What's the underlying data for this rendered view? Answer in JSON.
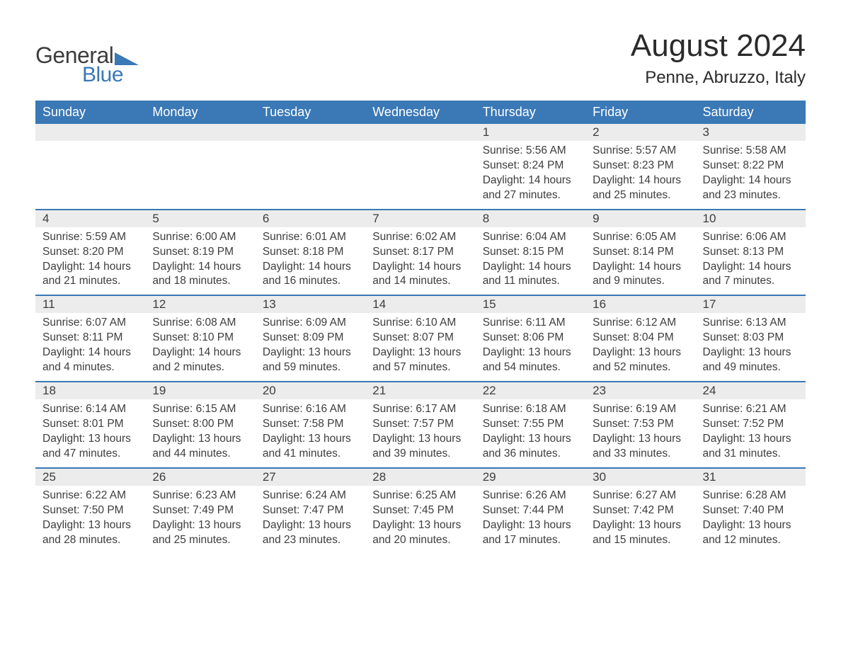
{
  "brand": {
    "general": "General",
    "blue": "Blue",
    "logo_color": "#3a78b6"
  },
  "title": "August 2024",
  "location": "Penne, Abruzzo, Italy",
  "colors": {
    "header_bg": "#3a78b6",
    "header_text": "#ffffff",
    "daynum_bg": "#ececec",
    "text": "#3d3d3d",
    "row_border": "#3a78b6",
    "page_bg": "#ffffff"
  },
  "fonts": {
    "title_size": 44,
    "location_size": 24,
    "dayhead_size": 18,
    "body_size": 15.5
  },
  "day_labels": [
    "Sunday",
    "Monday",
    "Tuesday",
    "Wednesday",
    "Thursday",
    "Friday",
    "Saturday"
  ],
  "leading_blanks": 4,
  "days": [
    {
      "n": 1,
      "sunrise": "5:56 AM",
      "sunset": "8:24 PM",
      "daylight": "14 hours and 27 minutes."
    },
    {
      "n": 2,
      "sunrise": "5:57 AM",
      "sunset": "8:23 PM",
      "daylight": "14 hours and 25 minutes."
    },
    {
      "n": 3,
      "sunrise": "5:58 AM",
      "sunset": "8:22 PM",
      "daylight": "14 hours and 23 minutes."
    },
    {
      "n": 4,
      "sunrise": "5:59 AM",
      "sunset": "8:20 PM",
      "daylight": "14 hours and 21 minutes."
    },
    {
      "n": 5,
      "sunrise": "6:00 AM",
      "sunset": "8:19 PM",
      "daylight": "14 hours and 18 minutes."
    },
    {
      "n": 6,
      "sunrise": "6:01 AM",
      "sunset": "8:18 PM",
      "daylight": "14 hours and 16 minutes."
    },
    {
      "n": 7,
      "sunrise": "6:02 AM",
      "sunset": "8:17 PM",
      "daylight": "14 hours and 14 minutes."
    },
    {
      "n": 8,
      "sunrise": "6:04 AM",
      "sunset": "8:15 PM",
      "daylight": "14 hours and 11 minutes."
    },
    {
      "n": 9,
      "sunrise": "6:05 AM",
      "sunset": "8:14 PM",
      "daylight": "14 hours and 9 minutes."
    },
    {
      "n": 10,
      "sunrise": "6:06 AM",
      "sunset": "8:13 PM",
      "daylight": "14 hours and 7 minutes."
    },
    {
      "n": 11,
      "sunrise": "6:07 AM",
      "sunset": "8:11 PM",
      "daylight": "14 hours and 4 minutes."
    },
    {
      "n": 12,
      "sunrise": "6:08 AM",
      "sunset": "8:10 PM",
      "daylight": "14 hours and 2 minutes."
    },
    {
      "n": 13,
      "sunrise": "6:09 AM",
      "sunset": "8:09 PM",
      "daylight": "13 hours and 59 minutes."
    },
    {
      "n": 14,
      "sunrise": "6:10 AM",
      "sunset": "8:07 PM",
      "daylight": "13 hours and 57 minutes."
    },
    {
      "n": 15,
      "sunrise": "6:11 AM",
      "sunset": "8:06 PM",
      "daylight": "13 hours and 54 minutes."
    },
    {
      "n": 16,
      "sunrise": "6:12 AM",
      "sunset": "8:04 PM",
      "daylight": "13 hours and 52 minutes."
    },
    {
      "n": 17,
      "sunrise": "6:13 AM",
      "sunset": "8:03 PM",
      "daylight": "13 hours and 49 minutes."
    },
    {
      "n": 18,
      "sunrise": "6:14 AM",
      "sunset": "8:01 PM",
      "daylight": "13 hours and 47 minutes."
    },
    {
      "n": 19,
      "sunrise": "6:15 AM",
      "sunset": "8:00 PM",
      "daylight": "13 hours and 44 minutes."
    },
    {
      "n": 20,
      "sunrise": "6:16 AM",
      "sunset": "7:58 PM",
      "daylight": "13 hours and 41 minutes."
    },
    {
      "n": 21,
      "sunrise": "6:17 AM",
      "sunset": "7:57 PM",
      "daylight": "13 hours and 39 minutes."
    },
    {
      "n": 22,
      "sunrise": "6:18 AM",
      "sunset": "7:55 PM",
      "daylight": "13 hours and 36 minutes."
    },
    {
      "n": 23,
      "sunrise": "6:19 AM",
      "sunset": "7:53 PM",
      "daylight": "13 hours and 33 minutes."
    },
    {
      "n": 24,
      "sunrise": "6:21 AM",
      "sunset": "7:52 PM",
      "daylight": "13 hours and 31 minutes."
    },
    {
      "n": 25,
      "sunrise": "6:22 AM",
      "sunset": "7:50 PM",
      "daylight": "13 hours and 28 minutes."
    },
    {
      "n": 26,
      "sunrise": "6:23 AM",
      "sunset": "7:49 PM",
      "daylight": "13 hours and 25 minutes."
    },
    {
      "n": 27,
      "sunrise": "6:24 AM",
      "sunset": "7:47 PM",
      "daylight": "13 hours and 23 minutes."
    },
    {
      "n": 28,
      "sunrise": "6:25 AM",
      "sunset": "7:45 PM",
      "daylight": "13 hours and 20 minutes."
    },
    {
      "n": 29,
      "sunrise": "6:26 AM",
      "sunset": "7:44 PM",
      "daylight": "13 hours and 17 minutes."
    },
    {
      "n": 30,
      "sunrise": "6:27 AM",
      "sunset": "7:42 PM",
      "daylight": "13 hours and 15 minutes."
    },
    {
      "n": 31,
      "sunrise": "6:28 AM",
      "sunset": "7:40 PM",
      "daylight": "13 hours and 12 minutes."
    }
  ],
  "field_labels": {
    "sunrise": "Sunrise:",
    "sunset": "Sunset:",
    "daylight": "Daylight:"
  }
}
